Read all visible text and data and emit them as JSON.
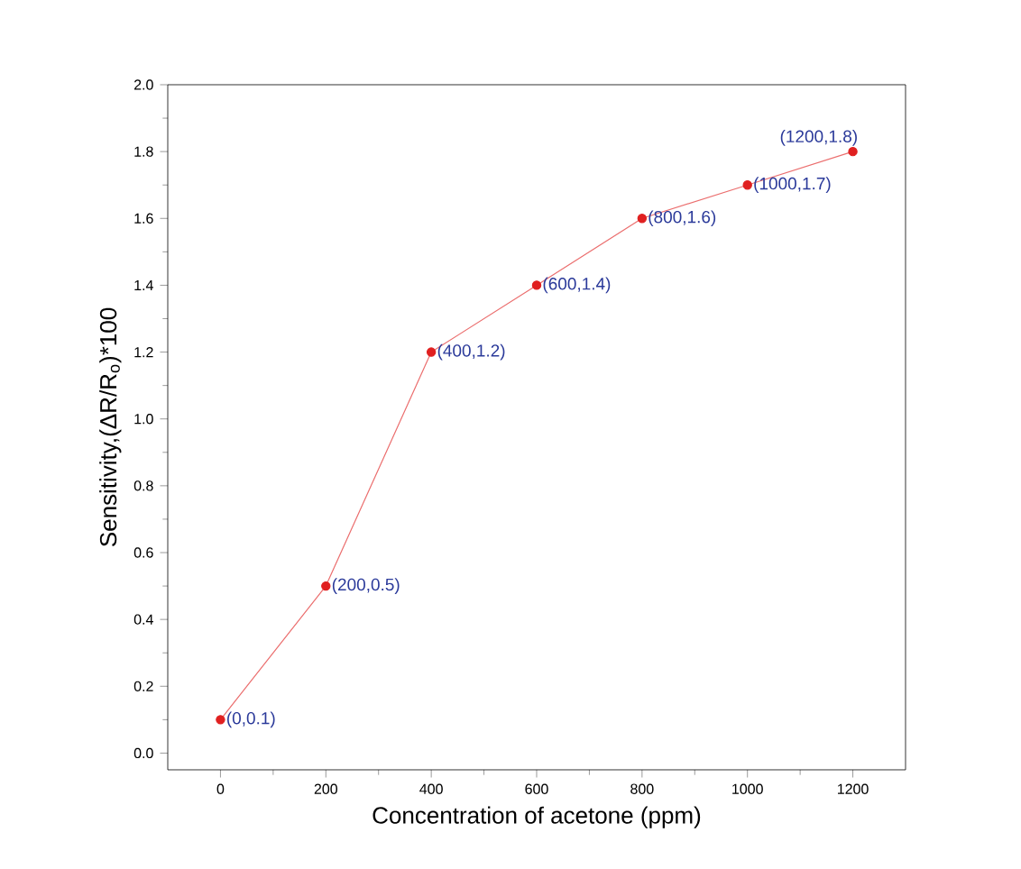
{
  "chart_data": {
    "type": "line",
    "xlabel": "Concentration of acetone (ppm)",
    "ylabel": "Sensitivity,(ΔR/R$_{o}$)*100",
    "x": [
      0,
      200,
      400,
      600,
      800,
      1000,
      1200
    ],
    "series": [
      {
        "color": "#e02020",
        "values": [
          0.1,
          0.5,
          1.2,
          1.4,
          1.6,
          1.7,
          1.8
        ]
      }
    ],
    "xlim": [
      -100,
      1300
    ],
    "ylim": [
      -0.05,
      2.0
    ],
    "xticks": [
      0,
      200,
      400,
      600,
      800,
      1000,
      1200
    ],
    "yticks": [
      {
        "value": 0,
        "label": "0.0"
      },
      0.2,
      0.4,
      0.6,
      0.8,
      {
        "value": 1,
        "label": "1.0"
      },
      1.2,
      1.4,
      1.6,
      1.8,
      {
        "value": 2,
        "label": "2.0"
      }
    ],
    "marker": "circle",
    "line_style": "solid",
    "grid": false,
    "annotations": [
      {
        "text": "(0,0.1)",
        "x": 0,
        "y": 0.1
      },
      {
        "text": "(200,0.5)",
        "x": 200,
        "y": 0.5
      },
      {
        "text": "(400,1.2)",
        "x": 400,
        "y": 1.2
      },
      {
        "text": "(600,1.4)",
        "x": 600,
        "y": 1.4
      },
      {
        "text": "(800,1.6)",
        "x": 800,
        "y": 1.6
      },
      {
        "text": "(1000,1.7)",
        "x": 1000,
        "y": 1.7
      },
      {
        "text": "(1200,1.8)",
        "x": 1200,
        "y": 1.8
      }
    ]
  }
}
